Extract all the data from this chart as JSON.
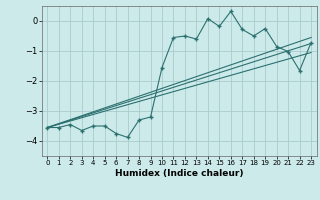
{
  "title": "",
  "xlabel": "Humidex (Indice chaleur)",
  "ylabel": "",
  "bg_color": "#cceaea",
  "grid_color": "#aacccc",
  "line_color": "#2d7070",
  "xlim": [
    -0.5,
    23.5
  ],
  "ylim": [
    -4.5,
    0.5
  ],
  "yticks": [
    0,
    -1,
    -2,
    -3,
    -4
  ],
  "xticks": [
    0,
    1,
    2,
    3,
    4,
    5,
    6,
    7,
    8,
    9,
    10,
    11,
    12,
    13,
    14,
    15,
    16,
    17,
    18,
    19,
    20,
    21,
    22,
    23
  ],
  "zigzag_x": [
    0,
    1,
    2,
    3,
    4,
    5,
    6,
    7,
    8,
    9,
    10,
    11,
    12,
    13,
    14,
    15,
    16,
    17,
    18,
    19,
    20,
    21,
    22,
    23
  ],
  "zigzag_y": [
    -3.55,
    -3.55,
    -3.45,
    -3.65,
    -3.5,
    -3.5,
    -3.75,
    -3.88,
    -3.3,
    -3.2,
    -1.55,
    -0.55,
    -0.5,
    -0.6,
    0.08,
    -0.18,
    0.32,
    -0.28,
    -0.5,
    -0.25,
    -0.85,
    -1.02,
    -1.65,
    -0.72
  ],
  "line1_x": [
    0,
    23
  ],
  "line1_y": [
    -3.55,
    -0.75
  ],
  "line2_x": [
    0,
    23
  ],
  "line2_y": [
    -3.55,
    -1.05
  ],
  "line3_x": [
    0,
    23
  ],
  "line3_y": [
    -3.55,
    -0.55
  ]
}
